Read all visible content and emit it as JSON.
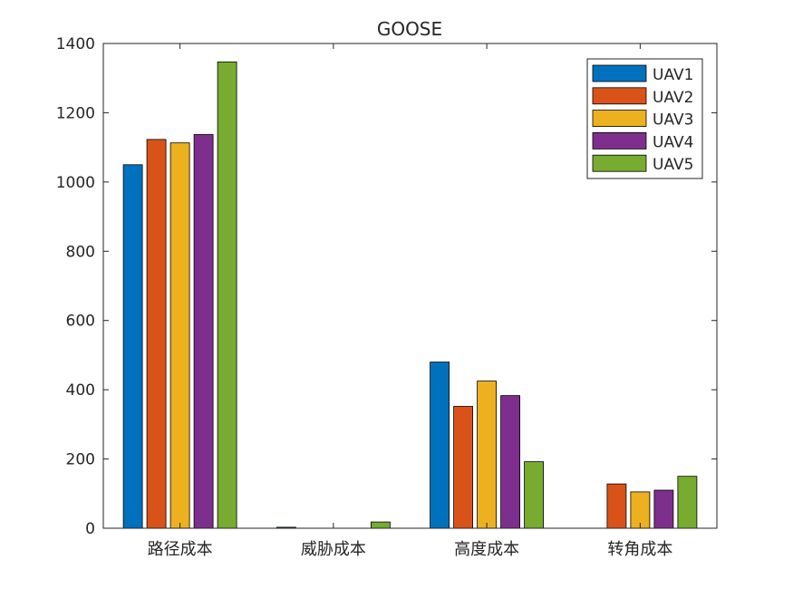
{
  "chart_data": {
    "type": "bar",
    "title": "GOOSE",
    "xlabel": "",
    "ylabel": "",
    "categories": [
      "路径成本",
      "威胁成本",
      "高度成本",
      "转角成本"
    ],
    "ylim": [
      0,
      1400
    ],
    "yticks": [
      0,
      200,
      400,
      600,
      800,
      1000,
      1200,
      1400
    ],
    "grid": false,
    "legend_position": "top-right",
    "series": [
      {
        "name": "UAV1",
        "color": "#0072BD",
        "values": [
          1050,
          3,
          480,
          0
        ]
      },
      {
        "name": "UAV2",
        "color": "#D95319",
        "values": [
          1123,
          0,
          352,
          128
        ]
      },
      {
        "name": "UAV3",
        "color": "#EDB120",
        "values": [
          1113,
          0,
          425,
          105
        ]
      },
      {
        "name": "UAV4",
        "color": "#7E2F8E",
        "values": [
          1137,
          0,
          383,
          110
        ]
      },
      {
        "name": "UAV5",
        "color": "#77AC30",
        "values": [
          1347,
          18,
          192,
          150
        ]
      }
    ]
  }
}
